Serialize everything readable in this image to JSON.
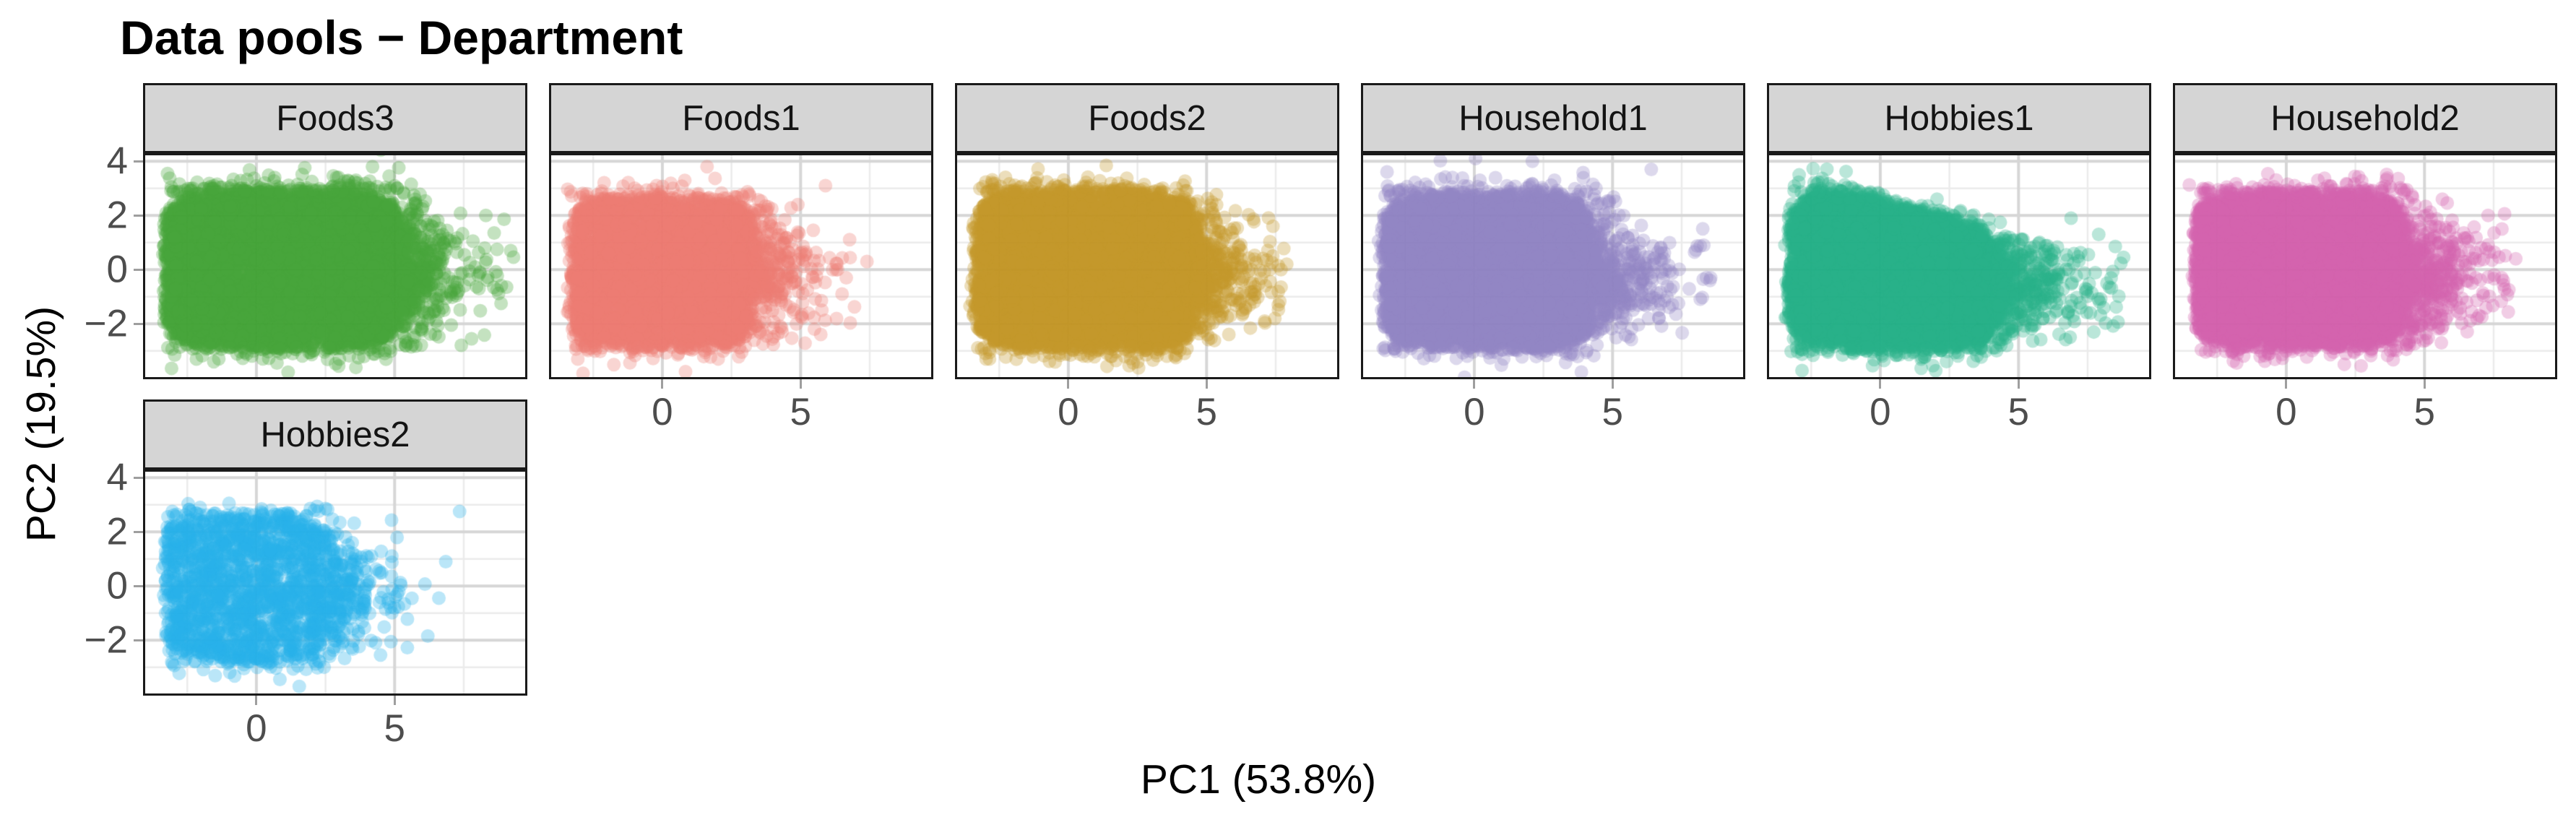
{
  "title": "Data pools − Department",
  "axes": {
    "x_title": "PC1 (53.8%)",
    "y_title": "PC2 (19.5%)"
  },
  "chart_data": {
    "type": "scatter",
    "title": "Data pools − Department",
    "xlabel": "PC1 (53.8%)",
    "ylabel": "PC2 (19.5%)",
    "facet_by": "Department",
    "legend": "none",
    "grid": true,
    "xlim": [
      -4.1,
      9.8
    ],
    "ylim": [
      -4.05,
      4.3
    ],
    "x_major_ticks": [
      0,
      5
    ],
    "x_tick_labels": [
      "0",
      "5"
    ],
    "y_major_ticks": [
      4,
      2,
      0,
      -2
    ],
    "y_tick_labels": [
      "4",
      "2",
      "0",
      "−2"
    ],
    "x_minor_gridlines": [
      -2.5,
      2.5,
      7.5
    ],
    "y_minor_gridlines": [
      3,
      1,
      -1,
      -3
    ],
    "axis_note": "x ticks shown only under the bottom-most panel of each column; y ticks only on first column",
    "style": {
      "strip_bg": "#D5D5D5",
      "strip_border": "#1A1A1A",
      "panel_border": "#1A1A1A",
      "grid_major": "#D6D6D6",
      "grid_minor": "#EBEBEB",
      "tick_mark_color": "#9E9E9E",
      "tick_label_color": "#4D4D4D",
      "title_color": "#000000",
      "point_alpha": 0.32,
      "point_radius_px": 9.5
    },
    "facets": [
      {
        "label": "Foods3",
        "row": 0,
        "col": 0,
        "color": "#46A63C",
        "n_points_approx": 8000,
        "core": {
          "n": 7000,
          "x": [
            -3.3,
            5.2
          ],
          "y": [
            -2.85,
            2.85
          ]
        },
        "fringe": {
          "n": 190,
          "top_frac": 0.55,
          "reach": 0.45
        },
        "tail": {
          "n": 460,
          "x_max": 9.4,
          "mean": 1.0,
          "mu": -0.1,
          "sigma": 1.25
        },
        "outliers": [
          [
            1.75,
            3.76
          ],
          [
            4.2,
            3.8
          ],
          [
            5.15,
            3.76
          ],
          [
            2.9,
            3.4
          ],
          [
            3.6,
            3.3
          ],
          [
            4.8,
            3.45
          ],
          [
            0.3,
            3.2
          ],
          [
            -0.9,
            3.1
          ],
          [
            5.6,
            3.15
          ],
          [
            9.2,
            0.7
          ],
          [
            9.05,
            -0.65
          ],
          [
            8.6,
            1.35
          ],
          [
            8.85,
            -1.25
          ],
          [
            8.3,
            2.0
          ]
        ]
      },
      {
        "label": "Foods1",
        "row": 0,
        "col": 1,
        "color": "#ED7D72",
        "n_points_approx": 4700,
        "core": {
          "n": 4300,
          "x": [
            -3.3,
            3.3
          ],
          "y": [
            -2.8,
            2.6
          ]
        },
        "fringe": {
          "n": 130,
          "top_frac": 0.6,
          "reach": 0.4
        },
        "tail": {
          "n": 300,
          "x_max": 7.0,
          "mean": 0.95,
          "mu": -0.15,
          "sigma": 1.2
        },
        "outliers": [
          [
            5.9,
            3.1
          ],
          [
            7.4,
            0.3
          ],
          [
            6.5,
            -0.9
          ],
          [
            5.5,
            -2.2
          ],
          [
            4.9,
            2.4
          ]
        ]
      },
      {
        "label": "Foods2",
        "row": 0,
        "col": 2,
        "color": "#C3992B",
        "n_points_approx": 7000,
        "core": {
          "n": 6500,
          "x": [
            -3.35,
            4.6
          ],
          "y": [
            -2.85,
            2.85
          ]
        },
        "fringe": {
          "n": 170,
          "top_frac": 0.5,
          "reach": 0.45
        },
        "tail": {
          "n": 400,
          "x_max": 7.8,
          "mean": 0.9,
          "mu": -0.2,
          "sigma": 1.2
        },
        "outliers": [
          [
            -1.2,
            3.2
          ],
          [
            -0.4,
            3.05
          ],
          [
            0.8,
            3.1
          ],
          [
            2.2,
            -3.55
          ],
          [
            0.7,
            -3.2
          ],
          [
            1.4,
            -3.1
          ],
          [
            7.9,
            0.2
          ],
          [
            7.4,
            1.6
          ],
          [
            7.1,
            -1.9
          ]
        ]
      },
      {
        "label": "Household1",
        "row": 0,
        "col": 3,
        "color": "#9186C3",
        "n_points_approx": 7000,
        "core": {
          "n": 6500,
          "x": [
            -3.3,
            4.3
          ],
          "y": [
            -2.85,
            2.7
          ]
        },
        "fringe": {
          "n": 180,
          "top_frac": 0.6,
          "reach": 0.5
        },
        "tail": {
          "n": 430,
          "x_max": 8.6,
          "mean": 1.05,
          "mu": -0.2,
          "sigma": 1.25
        },
        "outliers": [
          [
            2.1,
            4.0
          ],
          [
            6.4,
            3.7
          ],
          [
            2.9,
            3.3
          ],
          [
            2.1,
            3.15
          ],
          [
            4.4,
            3.0
          ],
          [
            0.2,
            3.3
          ],
          [
            -0.8,
            3.05
          ],
          [
            8.3,
            0.9
          ],
          [
            8.55,
            -0.3
          ]
        ]
      },
      {
        "label": "Hobbies1",
        "row": 0,
        "col": 4,
        "color": "#27B28A",
        "n_points_approx": 6600,
        "core": {
          "n": 6000,
          "x": [
            -3.3,
            4.2
          ],
          "y": [
            -2.85,
            2.85
          ],
          "top_slope": 0.26,
          "slope_start": -1.3
        },
        "fringe": {
          "n": 160,
          "top_frac": 0.45,
          "reach": 0.45
        },
        "tail": {
          "n": 430,
          "x_max": 8.8,
          "mean": 1.15,
          "mu": -0.6,
          "sigma": 1.1
        },
        "outliers": [
          [
            8.5,
            0.85
          ],
          [
            8.8,
            0.45
          ],
          [
            7.9,
            1.3
          ],
          [
            8.2,
            -0.5
          ],
          [
            7.6,
            -1.6
          ],
          [
            6.9,
            1.9
          ]
        ]
      },
      {
        "label": "Household2",
        "row": 0,
        "col": 5,
        "color": "#D264AE",
        "n_points_approx": 6600,
        "core": {
          "n": 6000,
          "x": [
            -3.3,
            4.3
          ],
          "y": [
            -2.8,
            2.8
          ]
        },
        "fringe": {
          "n": 160,
          "top_frac": 0.55,
          "reach": 0.4
        },
        "tail": {
          "n": 470,
          "x_max": 8.1,
          "mean": 1.15,
          "mu": -0.2,
          "sigma": 1.25
        },
        "outliers": [
          [
            2.1,
            -3.5
          ],
          [
            8.3,
            0.4
          ],
          [
            7.8,
            1.5
          ],
          [
            8.05,
            -0.75
          ],
          [
            7.3,
            2.0
          ],
          [
            6.9,
            -1.8
          ],
          [
            0.3,
            3.1
          ]
        ]
      },
      {
        "label": "Hobbies2",
        "row": 1,
        "col": 0,
        "color": "#29B2E8",
        "n_points_approx": 2100,
        "core": {
          "n": 1700,
          "x": [
            -3.3,
            2.6
          ],
          "y": [
            -2.75,
            2.55
          ]
        },
        "fringe": {
          "n": 80,
          "top_frac": 0.5,
          "reach": 0.4
        },
        "tail": {
          "n": 240,
          "x_max": 6.2,
          "mean": 1.05,
          "mu": -0.3,
          "sigma": 1.15
        },
        "outliers": [
          [
            7.35,
            2.75
          ],
          [
            0.85,
            -3.45
          ],
          [
            1.5,
            -2.95
          ],
          [
            6.6,
            -0.45
          ],
          [
            6.85,
            0.9
          ],
          [
            6.2,
            -1.85
          ],
          [
            2.45,
            -3.0
          ]
        ]
      }
    ]
  }
}
